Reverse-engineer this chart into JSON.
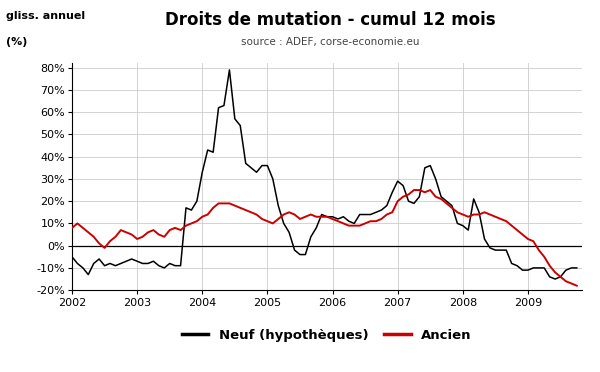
{
  "title": "Droits de mutation - cumul 12 mois",
  "subtitle": "source : ADEF, corse-economie.eu",
  "ylim": [
    -0.2,
    0.82
  ],
  "yticks": [
    -0.2,
    -0.1,
    0.0,
    0.1,
    0.2,
    0.3,
    0.4,
    0.5,
    0.6,
    0.7,
    0.8
  ],
  "xlim": [
    2002.0,
    2009.83
  ],
  "xticks": [
    2002,
    2003,
    2004,
    2005,
    2006,
    2007,
    2008,
    2009
  ],
  "background_color": "#ffffff",
  "grid_color": "#cccccc",
  "neuf_color": "#000000",
  "ancien_color": "#cc0000",
  "legend_neuf": "Neuf (hypothèques)",
  "legend_ancien": "Ancien",
  "neuf_x": [
    2002.0,
    2002.083,
    2002.167,
    2002.25,
    2002.333,
    2002.417,
    2002.5,
    2002.583,
    2002.667,
    2002.75,
    2002.833,
    2002.917,
    2003.0,
    2003.083,
    2003.167,
    2003.25,
    2003.333,
    2003.417,
    2003.5,
    2003.583,
    2003.667,
    2003.75,
    2003.833,
    2003.917,
    2004.0,
    2004.083,
    2004.167,
    2004.25,
    2004.333,
    2004.417,
    2004.5,
    2004.583,
    2004.667,
    2004.75,
    2004.833,
    2004.917,
    2005.0,
    2005.083,
    2005.167,
    2005.25,
    2005.333,
    2005.417,
    2005.5,
    2005.583,
    2005.667,
    2005.75,
    2005.833,
    2005.917,
    2006.0,
    2006.083,
    2006.167,
    2006.25,
    2006.333,
    2006.417,
    2006.5,
    2006.583,
    2006.667,
    2006.75,
    2006.833,
    2006.917,
    2007.0,
    2007.083,
    2007.167,
    2007.25,
    2007.333,
    2007.417,
    2007.5,
    2007.583,
    2007.667,
    2007.75,
    2007.833,
    2007.917,
    2008.0,
    2008.083,
    2008.167,
    2008.25,
    2008.333,
    2008.417,
    2008.5,
    2008.583,
    2008.667,
    2008.75,
    2008.833,
    2008.917,
    2009.0,
    2009.083,
    2009.167,
    2009.25,
    2009.333,
    2009.417,
    2009.5,
    2009.583,
    2009.667,
    2009.75
  ],
  "neuf_y": [
    -0.05,
    -0.08,
    -0.1,
    -0.13,
    -0.08,
    -0.06,
    -0.09,
    -0.08,
    -0.09,
    -0.08,
    -0.07,
    -0.06,
    -0.07,
    -0.08,
    -0.08,
    -0.07,
    -0.09,
    -0.1,
    -0.08,
    -0.09,
    -0.09,
    0.17,
    0.16,
    0.2,
    0.33,
    0.43,
    0.42,
    0.62,
    0.63,
    0.79,
    0.57,
    0.54,
    0.37,
    0.35,
    0.33,
    0.36,
    0.36,
    0.3,
    0.18,
    0.1,
    0.06,
    -0.02,
    -0.04,
    -0.04,
    0.04,
    0.08,
    0.14,
    0.13,
    0.13,
    0.12,
    0.13,
    0.11,
    0.1,
    0.14,
    0.14,
    0.14,
    0.15,
    0.16,
    0.18,
    0.24,
    0.29,
    0.27,
    0.2,
    0.19,
    0.22,
    0.35,
    0.36,
    0.3,
    0.22,
    0.2,
    0.18,
    0.1,
    0.09,
    0.07,
    0.21,
    0.15,
    0.03,
    -0.01,
    -0.02,
    -0.02,
    -0.02,
    -0.08,
    -0.09,
    -0.11,
    -0.11,
    -0.1,
    -0.1,
    -0.1,
    -0.14,
    -0.15,
    -0.14,
    -0.11,
    -0.1,
    -0.1
  ],
  "ancien_x": [
    2002.0,
    2002.083,
    2002.167,
    2002.25,
    2002.333,
    2002.417,
    2002.5,
    2002.583,
    2002.667,
    2002.75,
    2002.833,
    2002.917,
    2003.0,
    2003.083,
    2003.167,
    2003.25,
    2003.333,
    2003.417,
    2003.5,
    2003.583,
    2003.667,
    2003.75,
    2003.833,
    2003.917,
    2004.0,
    2004.083,
    2004.167,
    2004.25,
    2004.333,
    2004.417,
    2004.5,
    2004.583,
    2004.667,
    2004.75,
    2004.833,
    2004.917,
    2005.0,
    2005.083,
    2005.167,
    2005.25,
    2005.333,
    2005.417,
    2005.5,
    2005.583,
    2005.667,
    2005.75,
    2005.833,
    2005.917,
    2006.0,
    2006.083,
    2006.167,
    2006.25,
    2006.333,
    2006.417,
    2006.5,
    2006.583,
    2006.667,
    2006.75,
    2006.833,
    2006.917,
    2007.0,
    2007.083,
    2007.167,
    2007.25,
    2007.333,
    2007.417,
    2007.5,
    2007.583,
    2007.667,
    2007.75,
    2007.833,
    2007.917,
    2008.0,
    2008.083,
    2008.167,
    2008.25,
    2008.333,
    2008.417,
    2008.5,
    2008.583,
    2008.667,
    2008.75,
    2008.833,
    2008.917,
    2009.0,
    2009.083,
    2009.167,
    2009.25,
    2009.333,
    2009.417,
    2009.5,
    2009.583,
    2009.667,
    2009.75
  ],
  "ancien_y": [
    0.08,
    0.1,
    0.08,
    0.06,
    0.04,
    0.01,
    -0.01,
    0.02,
    0.04,
    0.07,
    0.06,
    0.05,
    0.03,
    0.04,
    0.06,
    0.07,
    0.05,
    0.04,
    0.07,
    0.08,
    0.07,
    0.09,
    0.1,
    0.11,
    0.13,
    0.14,
    0.17,
    0.19,
    0.19,
    0.19,
    0.18,
    0.17,
    0.16,
    0.15,
    0.14,
    0.12,
    0.11,
    0.1,
    0.12,
    0.14,
    0.15,
    0.14,
    0.12,
    0.13,
    0.14,
    0.13,
    0.13,
    0.13,
    0.12,
    0.11,
    0.1,
    0.09,
    0.09,
    0.09,
    0.1,
    0.11,
    0.11,
    0.12,
    0.14,
    0.15,
    0.2,
    0.22,
    0.23,
    0.25,
    0.25,
    0.24,
    0.25,
    0.22,
    0.21,
    0.19,
    0.17,
    0.15,
    0.14,
    0.13,
    0.14,
    0.14,
    0.15,
    0.14,
    0.13,
    0.12,
    0.11,
    0.09,
    0.07,
    0.05,
    0.03,
    0.02,
    -0.02,
    -0.05,
    -0.09,
    -0.12,
    -0.14,
    -0.16,
    -0.17,
    -0.18
  ]
}
